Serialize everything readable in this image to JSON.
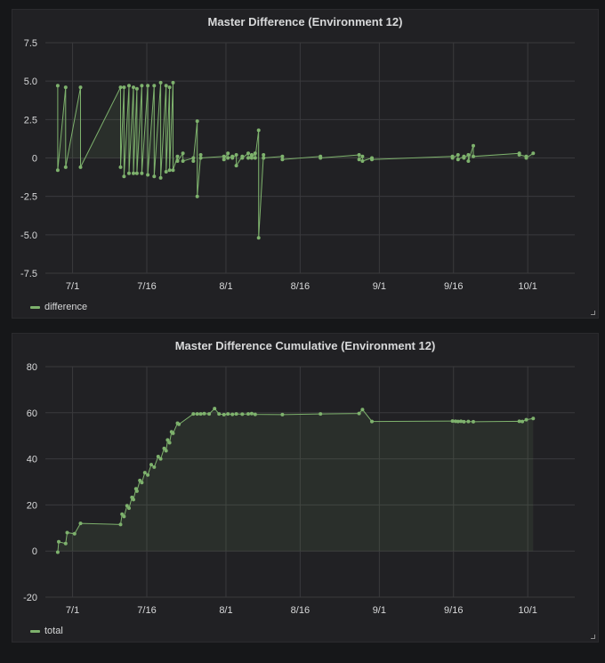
{
  "chart_data": [
    {
      "type": "area",
      "title": "Master Difference (Environment 12)",
      "legend": "difference",
      "color": "#7eb26d",
      "ylim": [
        -7.5,
        7.5
      ],
      "y_ticks": [
        "7.5",
        "5.0",
        "2.5",
        "0",
        "-2.5",
        "-5.0",
        "-7.5"
      ],
      "y_tick_values": [
        7.5,
        5.0,
        2.5,
        0,
        -2.5,
        -5.0,
        -7.5
      ],
      "x_domain": [
        -5.5,
        101.5
      ],
      "x_ticks": [
        "7/1",
        "7/16",
        "8/1",
        "8/16",
        "9/1",
        "9/16",
        "10/1"
      ],
      "x_tick_values": [
        0,
        15,
        31,
        46,
        62,
        77,
        92
      ],
      "grid": true,
      "legend_position": "bottom-left",
      "series": [
        {
          "name": "difference",
          "x": [
            -3,
            -3,
            -1.4,
            -1.4,
            1.6,
            1.6,
            9.7,
            9.7,
            10.4,
            10.4,
            11.4,
            11.4,
            12.3,
            12.3,
            13.0,
            13.0,
            14.0,
            14.0,
            15.2,
            15.2,
            16.5,
            16.5,
            17.8,
            17.8,
            18.9,
            18.9,
            19.6,
            19.6,
            20.3,
            20.3,
            21.2,
            21.2,
            22.3,
            22.3,
            24.4,
            24.4,
            25.2,
            25.2,
            25.9,
            25.9,
            30.6,
            30.6,
            31.4,
            31.4,
            32.3,
            32.3,
            33.1,
            33.1,
            34.3,
            34.3,
            35.5,
            35.5,
            36.2,
            36.2,
            36.9,
            36.9,
            37.6,
            37.6,
            38.6,
            38.6,
            42.4,
            42.4,
            50.1,
            50.1,
            57.9,
            57.9,
            58.6,
            58.6,
            60.5,
            60.5,
            76.8,
            76.8,
            77.9,
            77.9,
            79.1,
            79.1,
            80.0,
            80.0,
            81.0,
            81.0,
            90.3,
            90.3,
            91.7,
            91.7,
            93.1
          ],
          "y": [
            4.7,
            -0.8,
            4.6,
            -0.6,
            4.6,
            -0.6,
            4.6,
            -0.6,
            4.6,
            -1.2,
            4.7,
            -1.0,
            4.6,
            -1.0,
            4.5,
            -1.0,
            4.7,
            -1.0,
            4.7,
            -1.1,
            4.7,
            -1.2,
            4.9,
            -1.3,
            4.7,
            -0.9,
            4.6,
            -0.8,
            4.9,
            -0.8,
            0.1,
            -0.2,
            0.3,
            -0.2,
            0.0,
            -0.2,
            2.4,
            -2.5,
            0.2,
            0.0,
            0.1,
            -0.1,
            0.3,
            0.0,
            0.1,
            0.0,
            0.2,
            -0.5,
            0.1,
            0.0,
            0.3,
            0.0,
            0.2,
            0.0,
            0.3,
            0.0,
            1.8,
            -5.2,
            0.2,
            0.0,
            0.1,
            -0.1,
            0.1,
            0.0,
            0.2,
            -0.1,
            0.1,
            -0.2,
            0.0,
            -0.1,
            0.1,
            0.0,
            0.2,
            -0.1,
            0.1,
            0.0,
            0.2,
            -0.2,
            0.8,
            0.1,
            0.3,
            0.2,
            0.1,
            0.0,
            0.3
          ]
        }
      ]
    },
    {
      "type": "area",
      "title": "Master Difference Cumulative (Environment 12)",
      "legend": "total",
      "color": "#7eb26d",
      "ylim": [
        -20,
        80
      ],
      "y_ticks": [
        "80",
        "60",
        "40",
        "20",
        "0",
        "-20"
      ],
      "y_tick_values": [
        80,
        60,
        40,
        20,
        0,
        -20
      ],
      "x_domain": [
        -5.5,
        101.5
      ],
      "x_ticks": [
        "7/1",
        "7/16",
        "8/1",
        "8/16",
        "9/1",
        "9/16",
        "10/1"
      ],
      "x_tick_values": [
        0,
        15,
        31,
        46,
        62,
        77,
        92
      ],
      "grid": true,
      "legend_position": "bottom-left",
      "series": [
        {
          "name": "total",
          "x": [
            -3,
            -2.8,
            -1.4,
            -1.1,
            0.4,
            1.6,
            9.7,
            10.0,
            10.4,
            11.0,
            11.4,
            12.0,
            12.3,
            12.8,
            13.0,
            13.6,
            14.0,
            14.6,
            15.2,
            15.9,
            16.5,
            17.3,
            17.8,
            18.5,
            18.9,
            19.2,
            19.6,
            20.0,
            20.3,
            21.2,
            21.5,
            24.4,
            25.2,
            25.9,
            26.6,
            27.6,
            28.7,
            29.6,
            30.6,
            31.4,
            32.3,
            33.1,
            34.3,
            35.5,
            36.2,
            36.9,
            42.4,
            50.1,
            57.9,
            58.6,
            60.5,
            76.8,
            77.4,
            77.9,
            78.5,
            79.1,
            80.0,
            81.0,
            90.3,
            90.9,
            91.7,
            93.1
          ],
          "y": [
            -0.5,
            4.0,
            3.3,
            8.0,
            7.5,
            12.0,
            11.5,
            16.0,
            15.0,
            19.7,
            18.6,
            23.3,
            22.3,
            27.0,
            26.0,
            30.6,
            29.7,
            34.0,
            33.0,
            37.5,
            36.4,
            41.0,
            40.0,
            44.5,
            43.5,
            48.2,
            47.0,
            51.7,
            51.1,
            55.5,
            55.0,
            59.5,
            59.5,
            59.5,
            59.6,
            59.5,
            61.8,
            59.5,
            59.2,
            59.5,
            59.3,
            59.5,
            59.4,
            59.5,
            59.6,
            59.3,
            59.2,
            59.5,
            59.7,
            61.4,
            56.2,
            56.4,
            56.3,
            56.2,
            56.3,
            56.1,
            56.2,
            56.1,
            56.3,
            56.2,
            57.0,
            57.5
          ]
        }
      ]
    }
  ]
}
